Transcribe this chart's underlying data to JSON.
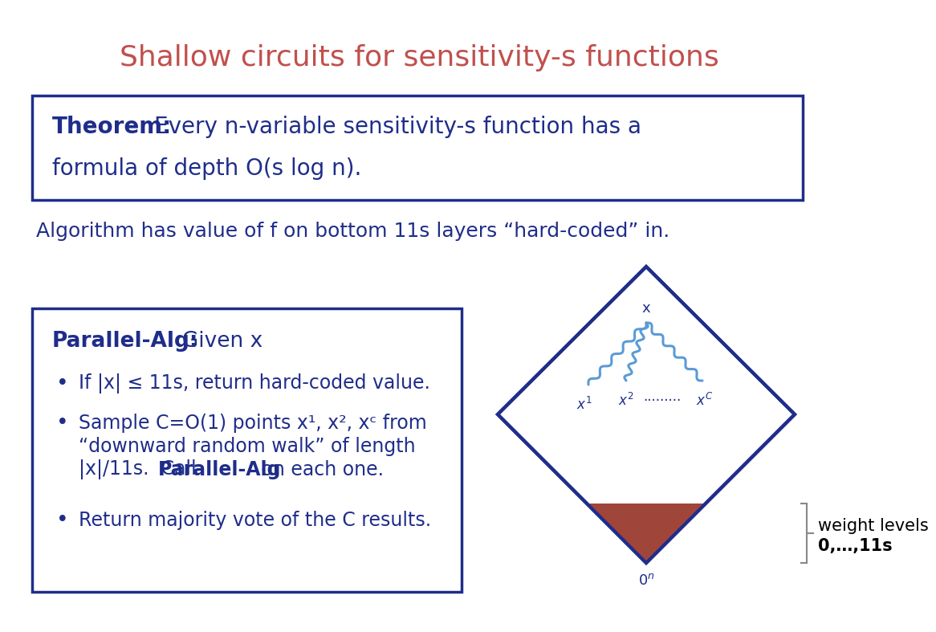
{
  "title": "Shallow circuits for sensitivity-s functions",
  "title_color": "#C0504D",
  "title_fontsize": 26,
  "bg_color": "#FFFFFF",
  "theorem_bold": "Theorem:",
  "theorem_fontsize": 20,
  "theorem_box_color": "#1F2D8A",
  "text_color": "#1F2D8A",
  "algo_text": "Algorithm has value of f on bottom 11s layers “hard-coded” in.",
  "algo_fontsize": 18,
  "parallel_title_bold": "Parallel-Alg:",
  "parallel_title_rest": "  Given x",
  "parallel_fontsize": 19,
  "bullet1": "If |x| ≤ 11s, return hard-coded value.",
  "bullet2_line1": "Sample C=O(1) points x¹, x², xᶜ from",
  "bullet2_line2": "“downward random walk” of length",
  "bullet2_line3": "|x|/11s.  Call ",
  "bullet2_bold": "Parallel-Alg",
  "bullet2_end": " on each one.",
  "bullet3": "Return majority vote of the C results.",
  "bullet_fontsize": 17,
  "box2_color": "#1F2D8A",
  "diamond_color": "#1F2D8A",
  "triangle_color": "#A0453A",
  "wavy_color": "#5B9BD5",
  "label_color": "#1F2D8A",
  "brace_color": "#888888",
  "weight_text_line1": "weight levels",
  "weight_text_line2": "0,…,11s",
  "weight_fontsize": 15
}
